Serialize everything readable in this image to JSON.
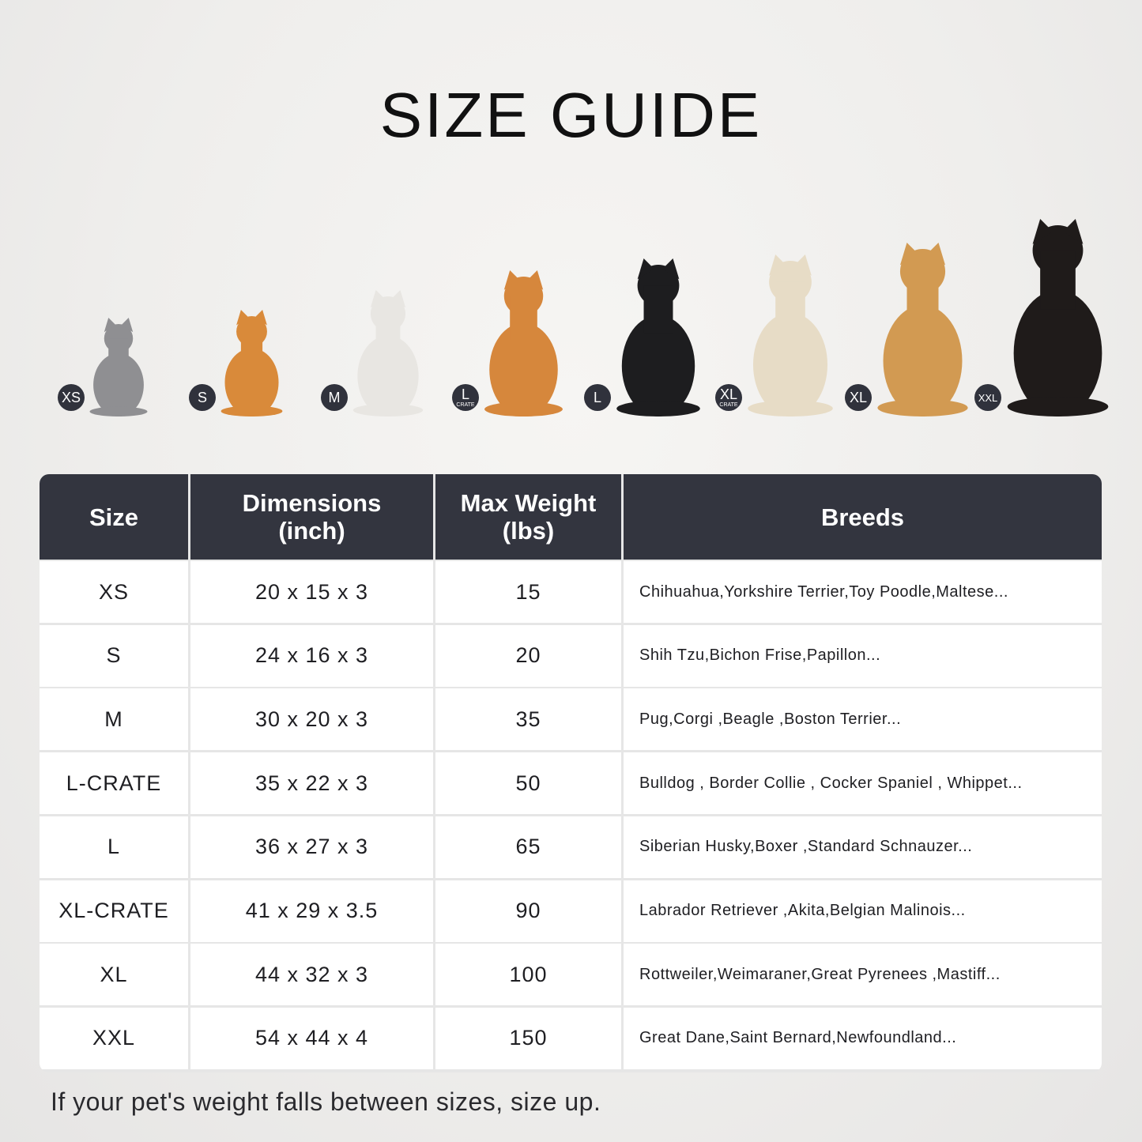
{
  "title": "SIZE GUIDE",
  "pets": [
    {
      "badge": "XS",
      "sub": "",
      "animal": "cat",
      "color": "#8f8f92"
    },
    {
      "badge": "S",
      "sub": "",
      "animal": "pomeranian",
      "color": "#d98a3a"
    },
    {
      "badge": "M",
      "sub": "",
      "animal": "french-bulldog",
      "color": "#e8e6e2"
    },
    {
      "badge": "L",
      "sub": "CRATE",
      "animal": "shiba-inu",
      "color": "#d6873c"
    },
    {
      "badge": "L",
      "sub": "",
      "animal": "border-collie",
      "color": "#1d1d1f"
    },
    {
      "badge": "XL",
      "sub": "CRATE",
      "animal": "labrador",
      "color": "#e7dcc6"
    },
    {
      "badge": "XL",
      "sub": "",
      "animal": "golden-retriever",
      "color": "#d29a52"
    },
    {
      "badge": "XXL",
      "sub": "",
      "animal": "doberman",
      "color": "#1f1b1a"
    }
  ],
  "table": {
    "headers": [
      {
        "line1": "Size",
        "line2": ""
      },
      {
        "line1": "Dimensions",
        "line2": "(inch)"
      },
      {
        "line1": "Max Weight",
        "line2": "(lbs)"
      },
      {
        "line1": "Breeds",
        "line2": ""
      }
    ],
    "rows": [
      {
        "size": "XS",
        "dims": "20 x 15 x 3",
        "weight": "15",
        "breeds": "Chihuahua,Yorkshire Terrier,Toy Poodle,Maltese..."
      },
      {
        "size": "S",
        "dims": "24 x 16 x 3",
        "weight": "20",
        "breeds": "Shih Tzu,Bichon Frise,Papillon..."
      },
      {
        "size": "M",
        "dims": "30 x 20 x 3",
        "weight": "35",
        "breeds": "Pug,Corgi ,Beagle ,Boston Terrier..."
      },
      {
        "size": "L-CRATE",
        "dims": "35 x 22 x 3",
        "weight": "50",
        "breeds": "Bulldog , Border Collie , Cocker Spaniel , Whippet..."
      },
      {
        "size": "L",
        "dims": "36 x 27 x 3",
        "weight": "65",
        "breeds": "Siberian Husky,Boxer ,Standard Schnauzer..."
      },
      {
        "size": "XL-CRATE",
        "dims": "41 x 29 x 3.5",
        "weight": "90",
        "breeds": "Labrador Retriever ,Akita,Belgian Malinois..."
      },
      {
        "size": "XL",
        "dims": "44 x 32 x 3",
        "weight": "100",
        "breeds": "Rottweiler,Weimaraner,Great Pyrenees ,Mastiff..."
      },
      {
        "size": "XXL",
        "dims": "54 x 44 x 4",
        "weight": "150",
        "breeds": "Great Dane,Saint Bernard,Newfoundland..."
      }
    ]
  },
  "note": "If your pet's weight falls between sizes, size up."
}
